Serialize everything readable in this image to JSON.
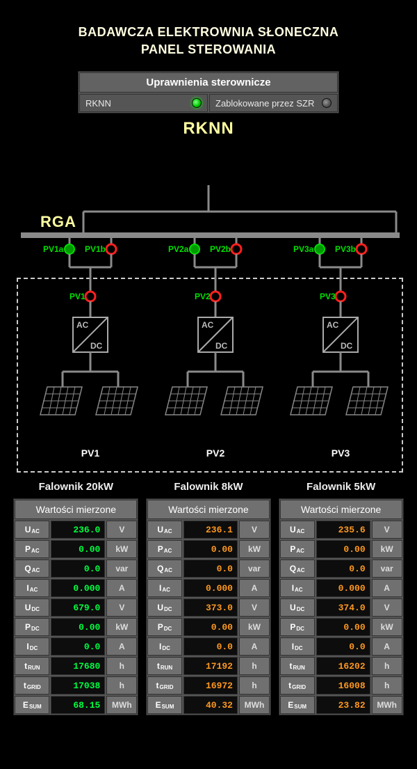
{
  "title_line1": "BADAWCZA ELEKTROWNIA SŁONECZNA",
  "title_line2": "PANEL STEROWANIA",
  "perm": {
    "header": "Uprawnienia sterownicze",
    "left_label": "RKNN",
    "right_label": "Zablokowane przez SZR",
    "left_state": "on",
    "right_state": "off"
  },
  "bus": {
    "primary_label": "RKNN",
    "secondary_label": "RGA"
  },
  "busbar_color": "#8a8a8a",
  "wire_color": "#8a8a8a",
  "node_green_fill": "#009a00",
  "node_green_stroke": "#00ff00",
  "node_red_stroke": "#ff2020",
  "segments": [
    {
      "id": "pv1",
      "label": "PV1",
      "inverter_label": "AC / DC",
      "feed_a": {
        "label": "PV1a",
        "state": "green"
      },
      "feed_b": {
        "label": "PV1b",
        "state": "red"
      },
      "switch": {
        "label": "PV1",
        "state": "red"
      }
    },
    {
      "id": "pv2",
      "label": "PV2",
      "inverter_label": "AC / DC",
      "feed_a": {
        "label": "PV2a",
        "state": "green"
      },
      "feed_b": {
        "label": "PV2b",
        "state": "red"
      },
      "switch": {
        "label": "PV2",
        "state": "red"
      }
    },
    {
      "id": "pv3",
      "label": "PV3",
      "inverter_label": "AC / DC",
      "feed_a": {
        "label": "PV3a",
        "state": "green"
      },
      "feed_b": {
        "label": "PV3b",
        "state": "red"
      },
      "switch": {
        "label": "PV3",
        "state": "red"
      }
    }
  ],
  "inverter_table_header": "Wartości mierzone",
  "inverter_rows": [
    {
      "label": "U",
      "sub": "AC",
      "unit": "V"
    },
    {
      "label": "P",
      "sub": "AC",
      "unit": "kW"
    },
    {
      "label": "Q",
      "sub": "AC",
      "unit": "var"
    },
    {
      "label": "I",
      "sub": "AC",
      "unit": "A"
    },
    {
      "label": "U",
      "sub": "DC",
      "unit": "V"
    },
    {
      "label": "P",
      "sub": "DC",
      "unit": "kW"
    },
    {
      "label": "I",
      "sub": "DC",
      "unit": "A"
    },
    {
      "label": "t",
      "sub": "RUN",
      "unit": "h"
    },
    {
      "label": "t",
      "sub": "GRID",
      "unit": "h"
    },
    {
      "label": "E",
      "sub": "SUM",
      "unit": "MWh"
    }
  ],
  "inverters": [
    {
      "title": "Falownik 20kW",
      "value_color": "green",
      "values": [
        "236.0",
        "0.00",
        "0.0",
        "0.000",
        "679.0",
        "0.00",
        "0.0",
        "17680",
        "17038",
        "68.15"
      ]
    },
    {
      "title": "Falownik 8kW",
      "value_color": "orange",
      "values": [
        "236.1",
        "0.00",
        "0.0",
        "0.000",
        "373.0",
        "0.00",
        "0.0",
        "17192",
        "16972",
        "40.32"
      ]
    },
    {
      "title": "Falownik 5kW",
      "value_color": "orange",
      "values": [
        "235.6",
        "0.00",
        "0.0",
        "0.000",
        "374.0",
        "0.00",
        "0.0",
        "16202",
        "16008",
        "23.82"
      ]
    }
  ],
  "colors": {
    "val_green": "#00ff40",
    "val_orange": "#ff9820",
    "panel_bg": "#555555",
    "cell_bg": "#707070"
  }
}
